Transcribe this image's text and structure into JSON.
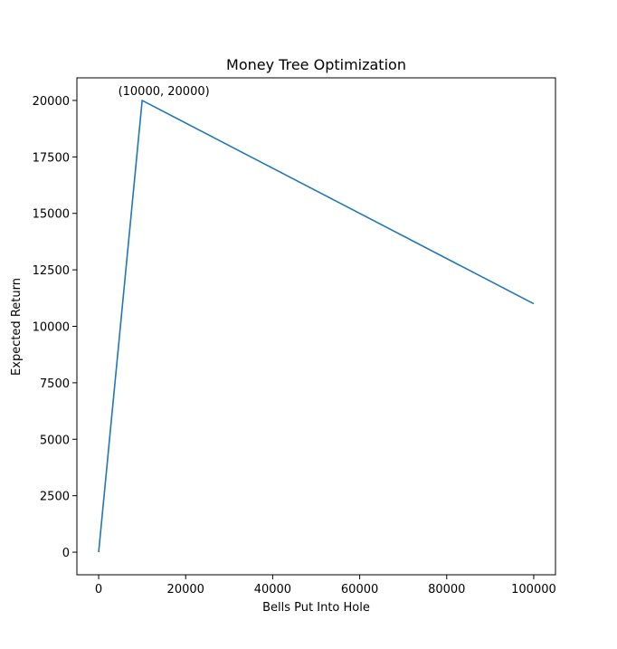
{
  "chart_data": {
    "type": "line",
    "title": "Money Tree Optimization",
    "xlabel": "Bells Put Into Hole",
    "ylabel": "Expected Return",
    "xlim": [
      -5000,
      105000
    ],
    "ylim": [
      -1000,
      21000
    ],
    "x_ticks": [
      0,
      20000,
      40000,
      60000,
      80000,
      100000
    ],
    "x_tick_labels": [
      "0",
      "20000",
      "40000",
      "60000",
      "80000",
      "100000"
    ],
    "y_ticks": [
      0,
      2500,
      5000,
      7500,
      10000,
      12500,
      15000,
      17500,
      20000
    ],
    "y_tick_labels": [
      "0",
      "2500",
      "5000",
      "7500",
      "10000",
      "12500",
      "15000",
      "17500",
      "20000"
    ],
    "grid": false,
    "series": [
      {
        "x": [
          0,
          10000,
          100000
        ],
        "values": [
          0,
          20000,
          11000
        ],
        "color": "#1f77b4"
      }
    ],
    "annotations": [
      {
        "text": "(10000, 20000)",
        "x": 10000,
        "y": 20000
      }
    ]
  }
}
